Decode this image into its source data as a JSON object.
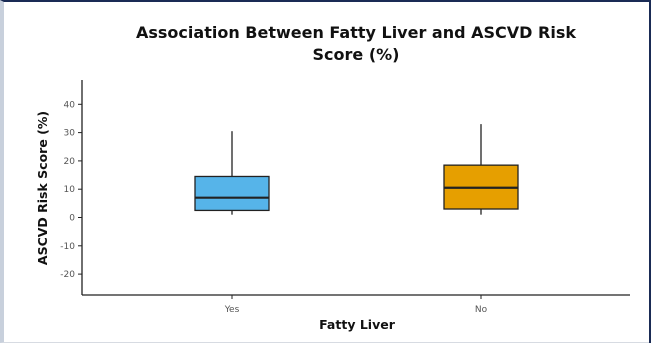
{
  "chart_data": {
    "type": "boxplot",
    "title_lines": [
      "Association Between Fatty Liver and ASCVD Risk",
      "Score (%)"
    ],
    "xlabel": "Fatty Liver",
    "ylabel": "ASCVD Risk Score (%)",
    "ylim": [
      -30,
      48
    ],
    "yticks": [
      40,
      30,
      20,
      10,
      0,
      -10,
      -20
    ],
    "grid": false,
    "categories": [
      "Yes",
      "No"
    ],
    "boxes": [
      {
        "category": "Yes",
        "whisker_low": 1,
        "q1": 2.5,
        "median": 7,
        "q3": 14.5,
        "whisker_high": 30.5,
        "color": "#56B4E9"
      },
      {
        "category": "No",
        "whisker_low": 1,
        "q1": 3,
        "median": 10.5,
        "q3": 18.5,
        "whisker_high": 33,
        "color": "#E69F00"
      }
    ]
  }
}
